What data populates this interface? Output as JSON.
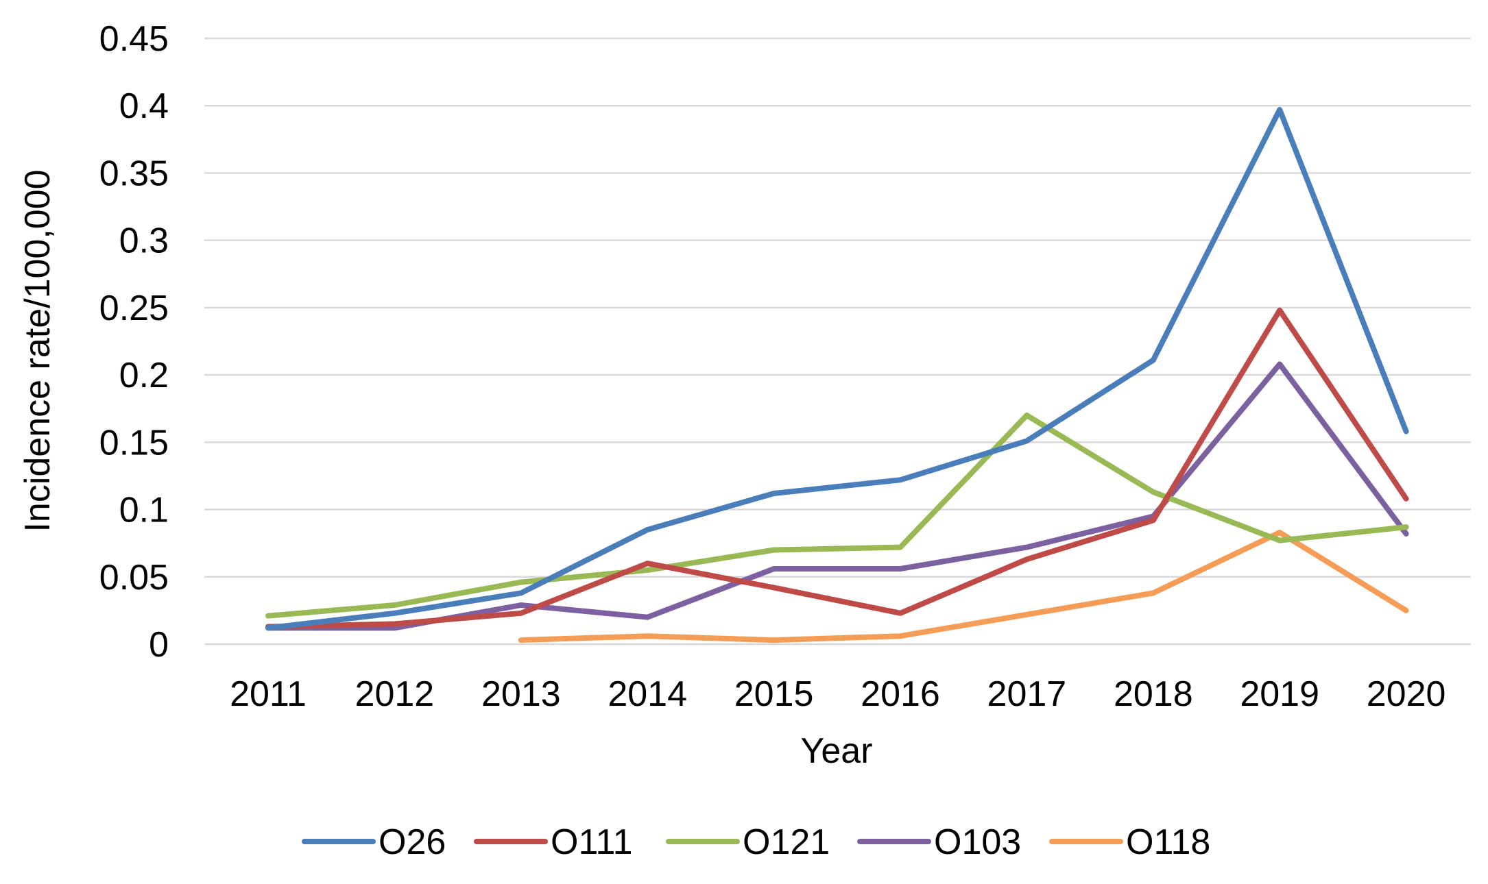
{
  "chart_data": {
    "type": "line",
    "title": "",
    "xlabel": "Year",
    "ylabel": "Incidence rate/100,000",
    "categories": [
      "2011",
      "2012",
      "2013",
      "2014",
      "2015",
      "2016",
      "2017",
      "2018",
      "2019",
      "2020"
    ],
    "y_tick_labels": [
      "0",
      "0.05",
      "0.1",
      "0.15",
      "0.2",
      "0.25",
      "0.3",
      "0.35",
      "0.4",
      "0.45"
    ],
    "ylim": [
      0,
      0.45
    ],
    "grid": true,
    "legend_position": "bottom",
    "series": [
      {
        "name": "O26",
        "color": "#4a7ebb",
        "values": [
          0.012,
          0.023,
          0.038,
          0.085,
          0.112,
          0.122,
          0.151,
          0.211,
          0.397,
          0.158
        ]
      },
      {
        "name": "O111",
        "color": "#be4b48",
        "values": [
          0.013,
          0.015,
          0.023,
          0.06,
          0.042,
          0.023,
          0.063,
          0.092,
          0.248,
          0.108
        ]
      },
      {
        "name": "O121",
        "color": "#98b954",
        "values": [
          0.021,
          0.029,
          0.046,
          0.055,
          0.07,
          0.072,
          0.17,
          0.113,
          0.077,
          0.087
        ]
      },
      {
        "name": "O103",
        "color": "#7d60a0",
        "values": [
          0.012,
          0.012,
          0.029,
          0.02,
          0.056,
          0.056,
          0.072,
          0.095,
          0.208,
          0.082
        ]
      },
      {
        "name": "O118",
        "color": "#f59d56",
        "values": [
          null,
          null,
          0.003,
          0.006,
          0.003,
          0.006,
          0.022,
          0.038,
          0.083,
          0.025
        ]
      }
    ]
  }
}
